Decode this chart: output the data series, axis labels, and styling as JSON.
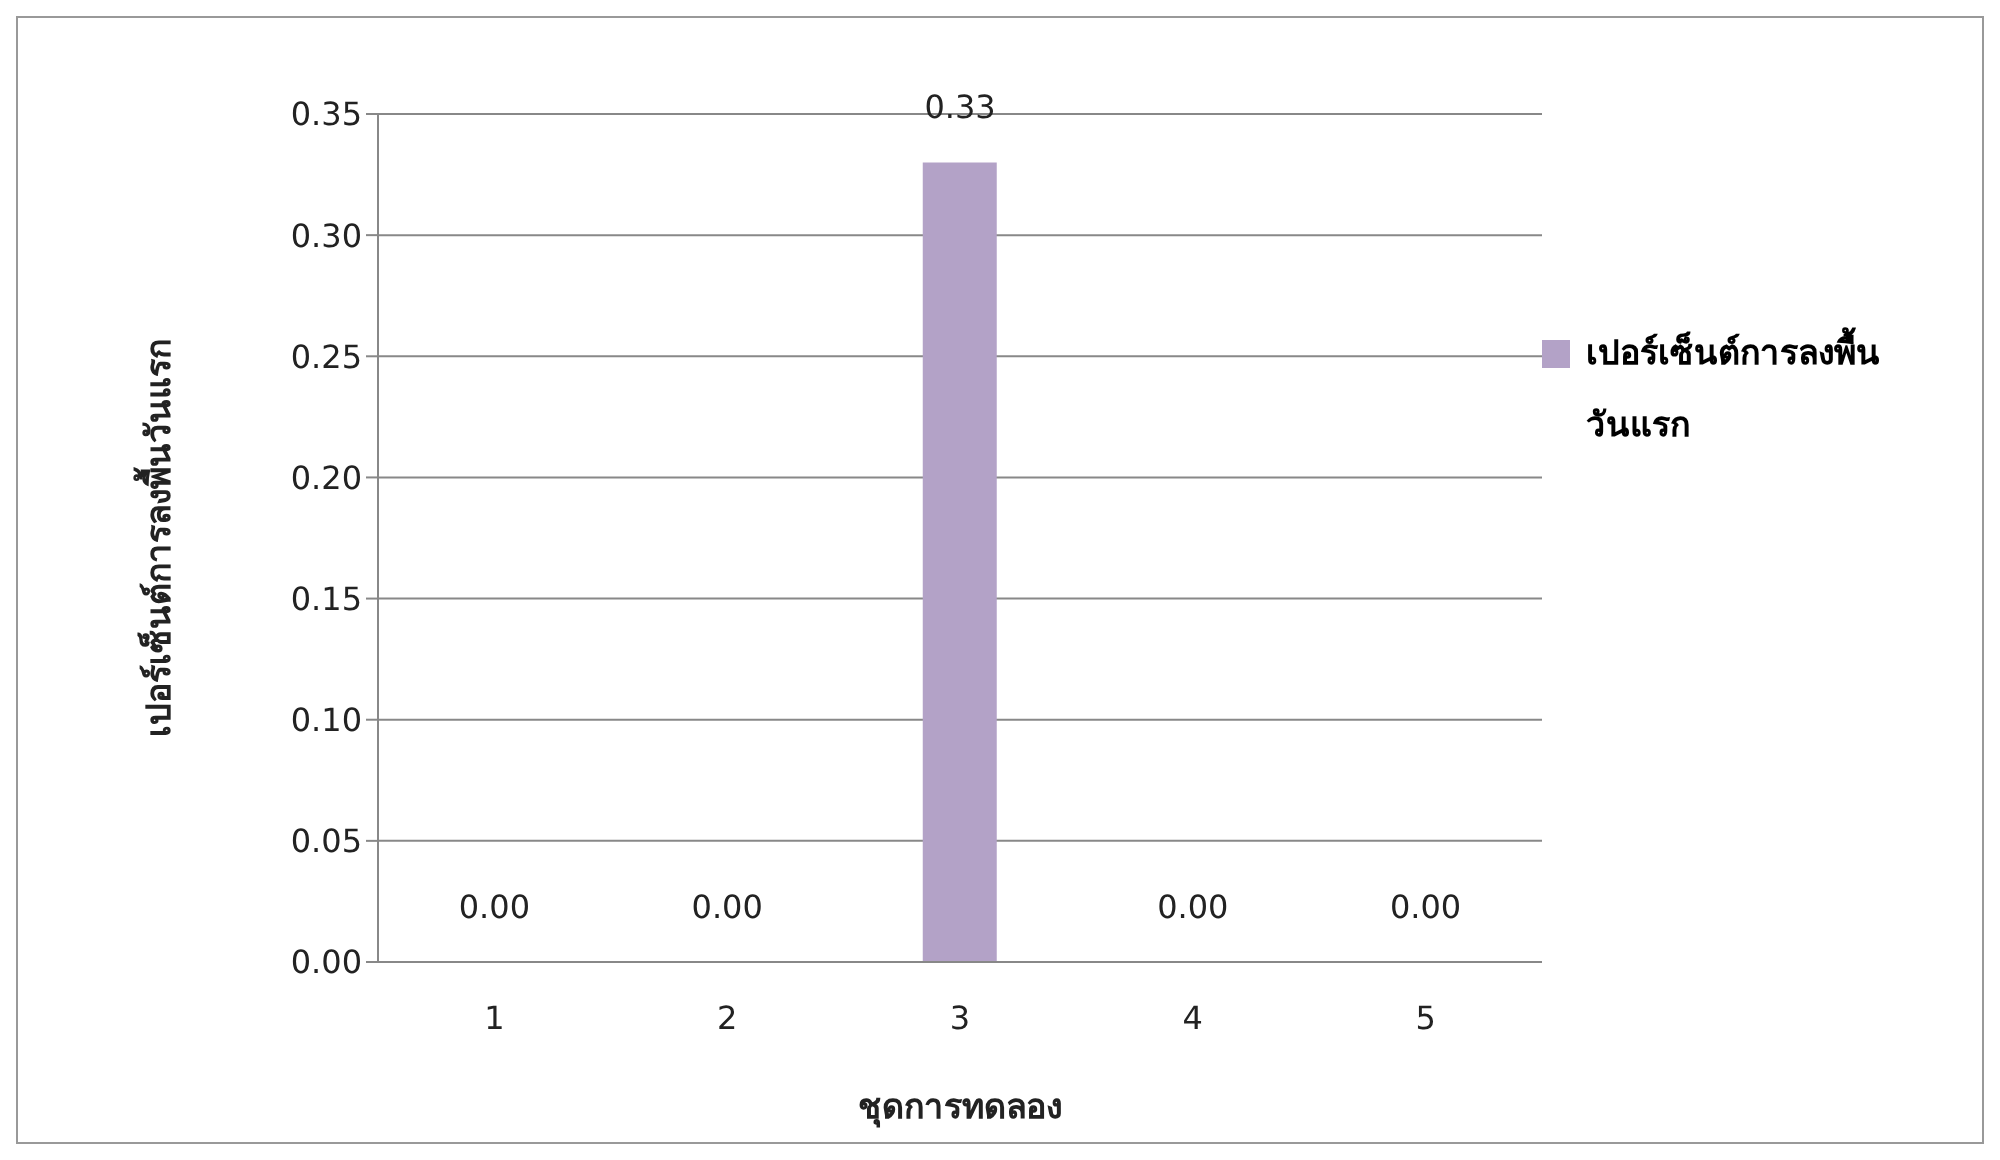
{
  "chart_data": {
    "type": "bar",
    "xlabel": "ชุดการทดลอง",
    "ylabel": "เปอร์เซ็นต์การลงพื้นวันแรก",
    "categories": [
      "1",
      "2",
      "3",
      "4",
      "5"
    ],
    "series": [
      {
        "name": "เปอร์เซ็นต์การลงพื้นวันแรก",
        "color": "#b3a2c7",
        "values": [
          0,
          0,
          0.33,
          0,
          0
        ],
        "value_labels": [
          "0.00",
          "0.00",
          "0.33",
          "0.00",
          "0.00"
        ]
      }
    ],
    "ylim": [
      0,
      0.35
    ],
    "yticks": [
      {
        "value": 0,
        "label": "0.00"
      },
      {
        "value": 0.05,
        "label": "0.05"
      },
      {
        "value": 0.1,
        "label": "0.10"
      },
      {
        "value": 0.15,
        "label": "0.15"
      },
      {
        "value": 0.2,
        "label": "0.20"
      },
      {
        "value": 0.25,
        "label": "0.25"
      },
      {
        "value": 0.3,
        "label": "0.30"
      },
      {
        "value": 0.35,
        "label": "0.35"
      }
    ],
    "grid": "y",
    "legend": "right"
  }
}
